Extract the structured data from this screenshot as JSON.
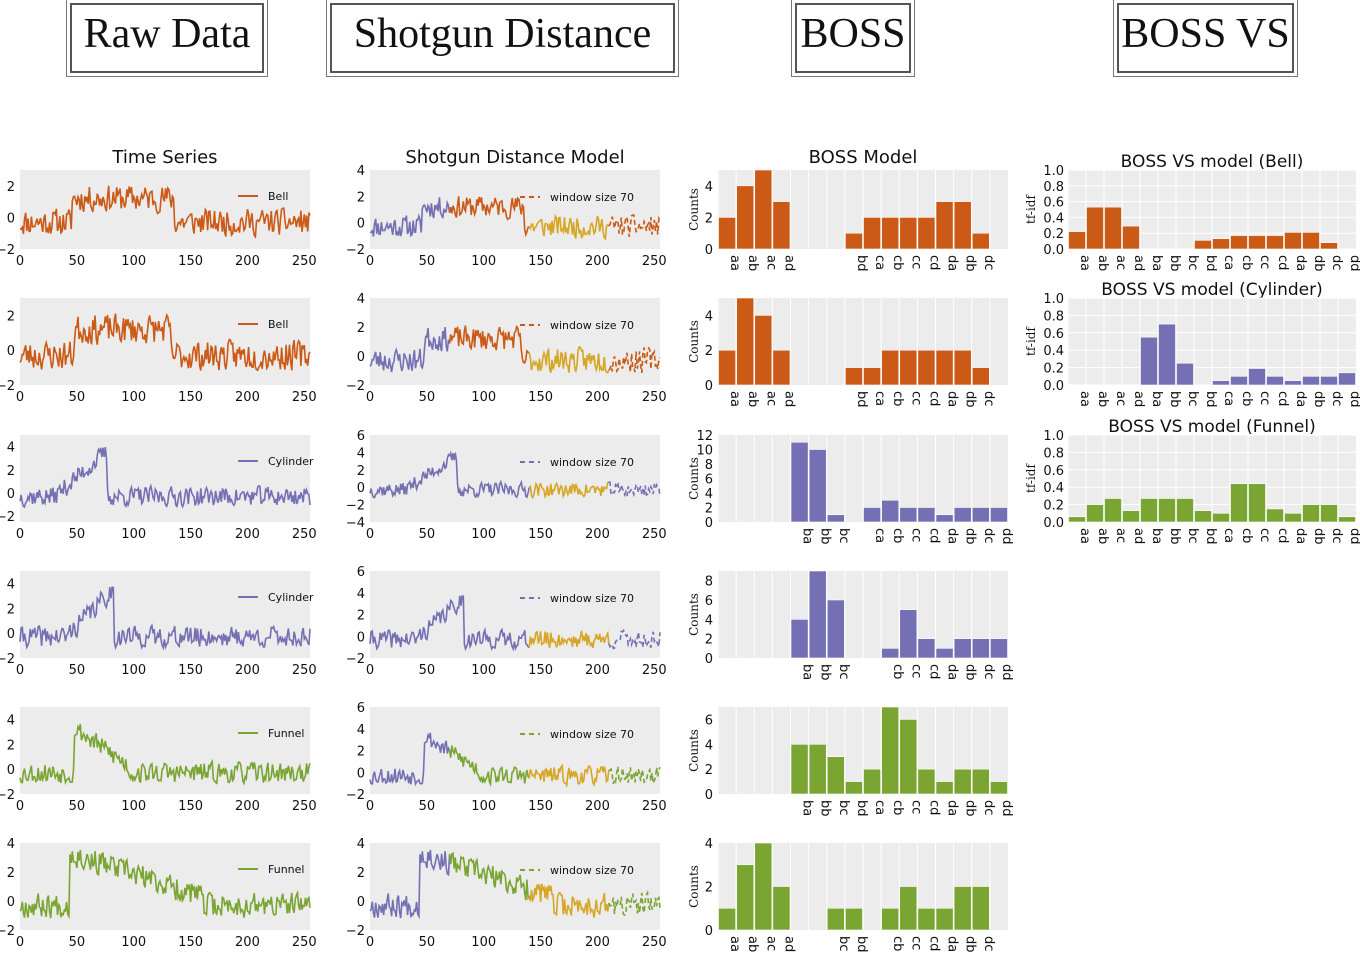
{
  "headers": [
    "Raw Data",
    "Shotgun Distance",
    "BOSS",
    "BOSS VS"
  ],
  "panel_titles": {
    "raw": "Time Series",
    "shotgun": "Shotgun Distance Model",
    "boss": "BOSS Model",
    "bossvs": [
      "BOSS VS model (Bell)",
      "BOSS VS model (Cylinder)",
      "BOSS VS model (Funnel)"
    ]
  },
  "colors": {
    "Bell": "#cc5a17",
    "Cylinder": "#7570b3",
    "Funnel": "#7aa532",
    "window": "#d6a626",
    "plot_bg": "#ececec"
  },
  "chart_data": [
    {
      "type": "line",
      "title": "Time Series",
      "panel": "raw",
      "x_range": [
        0,
        255
      ],
      "x_ticks": [
        0,
        50,
        100,
        150,
        200,
        250
      ],
      "series": [
        {
          "name": "Bell",
          "class": "Bell",
          "y_ticks": [
            -2,
            0,
            2
          ],
          "ylim": [
            -2,
            3
          ],
          "onset": 46,
          "end": 135,
          "seed": 11
        },
        {
          "name": "Bell",
          "class": "Bell",
          "y_ticks": [
            -2,
            0,
            2
          ],
          "ylim": [
            -2,
            3
          ],
          "onset": 48,
          "end": 132,
          "seed": 23
        },
        {
          "name": "Cylinder",
          "class": "Cylinder",
          "y_ticks": [
            -2,
            0,
            2,
            4
          ],
          "ylim": [
            -2.5,
            5
          ],
          "onset": 30,
          "end": 76,
          "seed": 37
        },
        {
          "name": "Cylinder",
          "class": "Cylinder",
          "y_ticks": [
            -2,
            0,
            2,
            4
          ],
          "ylim": [
            -2,
            5
          ],
          "onset": 40,
          "end": 82,
          "seed": 41
        },
        {
          "name": "Funnel",
          "class": "Funnel",
          "y_ticks": [
            -2,
            0,
            2,
            4
          ],
          "ylim": [
            -2,
            5
          ],
          "onset": 48,
          "end": 95,
          "seed": 53
        },
        {
          "name": "Funnel",
          "class": "Funnel",
          "y_ticks": [
            -2,
            0,
            2,
            4
          ],
          "ylim": [
            -2,
            4
          ],
          "onset": 44,
          "end": 160,
          "seed": 67
        }
      ]
    },
    {
      "type": "line",
      "title": "Shotgun Distance Model",
      "panel": "shotgun",
      "legend": "window size 70",
      "x_range": [
        0,
        255
      ],
      "x_ticks": [
        0,
        50,
        100,
        150,
        200,
        250
      ],
      "windows": [
        0,
        70,
        140,
        210,
        255
      ],
      "rows": [
        {
          "class": "Bell",
          "y_ticks": [
            -2,
            0,
            2,
            4
          ],
          "ylim": [
            -2,
            4
          ]
        },
        {
          "class": "Bell",
          "y_ticks": [
            -2,
            0,
            2,
            4
          ],
          "ylim": [
            -2,
            4
          ]
        },
        {
          "class": "Cylinder",
          "y_ticks": [
            -4,
            -2,
            0,
            2,
            4,
            6
          ],
          "ylim": [
            -4,
            6
          ]
        },
        {
          "class": "Cylinder",
          "y_ticks": [
            -2,
            0,
            2,
            4,
            6
          ],
          "ylim": [
            -2,
            6
          ]
        },
        {
          "class": "Funnel",
          "y_ticks": [
            -2,
            0,
            2,
            4,
            6
          ],
          "ylim": [
            -2,
            6
          ]
        },
        {
          "class": "Funnel",
          "y_ticks": [
            -2,
            0,
            2,
            4
          ],
          "ylim": [
            -2,
            4
          ]
        }
      ]
    },
    {
      "type": "bar",
      "title": "BOSS Model",
      "panel": "boss",
      "ylabel": "Counts",
      "categories": [
        "aa",
        "ab",
        "ac",
        "ad",
        "ba",
        "bb",
        "bc",
        "bd",
        "ca",
        "cb",
        "cc",
        "cd",
        "da",
        "db",
        "dc",
        "dd"
      ],
      "series": [
        {
          "class": "Bell",
          "ylim": [
            0,
            5
          ],
          "y_ticks": [
            0,
            2,
            4
          ],
          "values": {
            "aa": 2,
            "ab": 4,
            "ac": 5,
            "ad": 3,
            "bd": 1,
            "ca": 2,
            "cb": 2,
            "cc": 2,
            "cd": 2,
            "da": 3,
            "db": 3,
            "dc": 1
          }
        },
        {
          "class": "Bell",
          "ylim": [
            0,
            5
          ],
          "y_ticks": [
            0,
            2,
            4
          ],
          "values": {
            "aa": 2,
            "ab": 5,
            "ac": 4,
            "ad": 2,
            "bd": 1,
            "ca": 1,
            "cb": 2,
            "cc": 2,
            "cd": 2,
            "da": 2,
            "db": 2,
            "dc": 1
          }
        },
        {
          "class": "Cylinder",
          "ylim": [
            0,
            12
          ],
          "y_ticks": [
            0,
            2,
            4,
            6,
            8,
            10,
            12
          ],
          "values": {
            "ba": 11,
            "bb": 10,
            "bc": 1,
            "ca": 2,
            "cb": 3,
            "cc": 2,
            "cd": 2,
            "da": 1,
            "db": 2,
            "dc": 2,
            "dd": 2
          }
        },
        {
          "class": "Cylinder",
          "ylim": [
            0,
            9
          ],
          "y_ticks": [
            0,
            2,
            4,
            6,
            8
          ],
          "values": {
            "ba": 4,
            "bb": 9,
            "bc": 6,
            "cb": 1,
            "cc": 5,
            "cd": 2,
            "da": 1,
            "db": 2,
            "dc": 2,
            "dd": 2
          }
        },
        {
          "class": "Funnel",
          "ylim": [
            0,
            7
          ],
          "y_ticks": [
            0,
            2,
            4,
            6
          ],
          "values": {
            "ba": 4,
            "bb": 4,
            "bc": 3,
            "bd": 1,
            "ca": 2,
            "cb": 7,
            "cc": 6,
            "cd": 2,
            "da": 1,
            "db": 2,
            "dc": 2,
            "dd": 1
          }
        },
        {
          "class": "Funnel",
          "ylim": [
            0,
            4
          ],
          "y_ticks": [
            0,
            2,
            4
          ],
          "values": {
            "aa": 1,
            "ab": 3,
            "ac": 4,
            "ad": 2,
            "bc": 1,
            "bd": 1,
            "cb": 1,
            "cc": 2,
            "cd": 1,
            "da": 1,
            "db": 2,
            "dc": 2
          }
        }
      ]
    },
    {
      "type": "bar",
      "title": "BOSS VS model",
      "panel": "bossvs",
      "ylabel": "tf-idf",
      "categories": [
        "aa",
        "ab",
        "ac",
        "ad",
        "ba",
        "bb",
        "bc",
        "bd",
        "ca",
        "cb",
        "cc",
        "cd",
        "da",
        "db",
        "dc",
        "dd"
      ],
      "ylim": [
        0,
        1
      ],
      "y_ticks": [
        0.0,
        0.2,
        0.4,
        0.6,
        0.8,
        1.0
      ],
      "series": [
        {
          "name": "Bell",
          "values": [
            0.22,
            0.53,
            0.53,
            0.29,
            0,
            0,
            0,
            0.11,
            0.13,
            0.17,
            0.17,
            0.17,
            0.21,
            0.21,
            0.08,
            0
          ]
        },
        {
          "name": "Cylinder",
          "values": [
            0,
            0,
            0,
            0,
            0.55,
            0.7,
            0.25,
            0,
            0.05,
            0.1,
            0.19,
            0.1,
            0.05,
            0.1,
            0.1,
            0.14
          ]
        },
        {
          "name": "Funnel",
          "values": [
            0.06,
            0.2,
            0.27,
            0.13,
            0.27,
            0.27,
            0.27,
            0.13,
            0.1,
            0.44,
            0.44,
            0.15,
            0.1,
            0.2,
            0.2,
            0.06
          ]
        }
      ]
    }
  ]
}
